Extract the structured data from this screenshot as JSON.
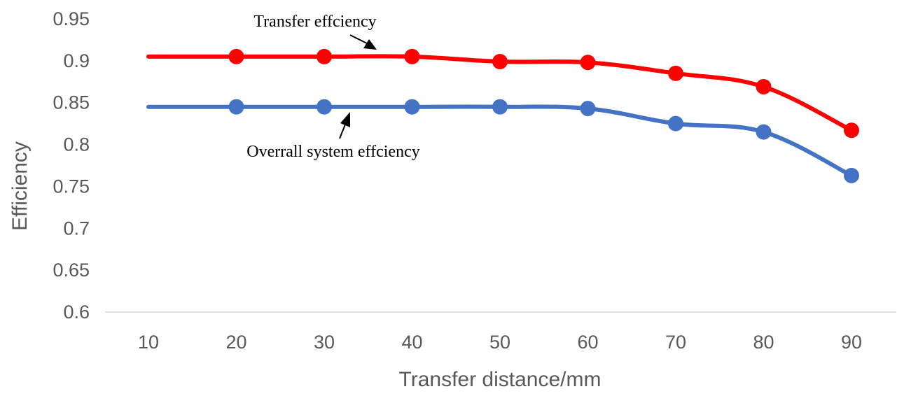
{
  "chart_data": {
    "type": "line",
    "title": "",
    "xlabel": "Transfer distance/mm",
    "ylabel": "Efficiency",
    "x": [
      10,
      20,
      30,
      40,
      50,
      60,
      70,
      80,
      90
    ],
    "ylim": [
      0.6,
      0.95
    ],
    "yticks": [
      "0.6",
      "0.65",
      "0.7",
      "0.75",
      "0.8",
      "0.85",
      "0.9",
      "0.95"
    ],
    "xticks": [
      "10",
      "20",
      "30",
      "40",
      "50",
      "60",
      "70",
      "80",
      "90"
    ],
    "grid": false,
    "legend": "none",
    "series": [
      {
        "label": "Transfer effciency",
        "color": "#ff0000",
        "values": [
          0.905,
          0.905,
          0.905,
          0.905,
          0.899,
          0.898,
          0.885,
          0.869,
          0.817
        ],
        "marker_from_index": 1
      },
      {
        "label": "Overrall system effciency",
        "color": "#4472c4",
        "values": [
          0.845,
          0.845,
          0.845,
          0.845,
          0.845,
          0.843,
          0.825,
          0.815,
          0.763
        ],
        "marker_from_index": 1
      }
    ],
    "annotations": [
      {
        "text": "Transfer effciency",
        "series_index": 0
      },
      {
        "text": "Overrall system effciency",
        "series_index": 1
      }
    ]
  }
}
